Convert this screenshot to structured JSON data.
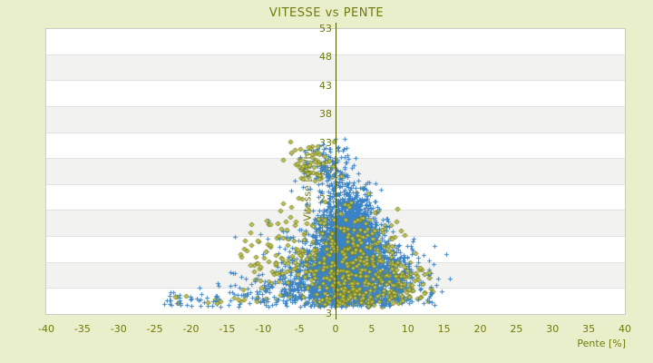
{
  "page": {
    "background": "#e9efca"
  },
  "chart_data": {
    "type": "scatter",
    "title": "VITESSE vs PENTE",
    "xlabel": "Pente [%]",
    "ylabel": "Vitesse [km/h]",
    "xlim": [
      -40,
      40
    ],
    "ylim": [
      3,
      53
    ],
    "xticks": [
      -40,
      -35,
      -30,
      -25,
      -20,
      -15,
      -10,
      -5,
      0,
      5,
      10,
      15,
      20,
      25,
      30,
      35,
      40
    ],
    "yticks": [
      3,
      8,
      13,
      18,
      23,
      28,
      33,
      38,
      43,
      48,
      53
    ],
    "grid": {
      "band_count": 11,
      "band_colors": [
        "#ffffff",
        "#f2f3f1"
      ],
      "separator_color": "#e2e2e2",
      "border_color": "#cccccc",
      "legend": "off"
    },
    "colors": {
      "title": "#6e7b0e",
      "tick_labels": "#6e7b0e",
      "axis_titles": "#6e7b0e",
      "zero_axis": "#4c5704"
    },
    "seed": 987654321,
    "series": [
      {
        "name": "serie-pente-vitesse-2",
        "marker": "diamond",
        "fill": "#c4ca4e",
        "stroke": "#6b701a",
        "size": 5,
        "overlay_fraction": 0.38,
        "clusters": [
          {
            "n": 480,
            "mx": 2.3,
            "sx": 2.6,
            "my": 13,
            "sy": 4.6,
            "clip": [
              -5,
              9,
              4.6,
              27.5
            ]
          },
          {
            "n": 320,
            "mx": 1.0,
            "sx": 5.5,
            "my": 9.5,
            "sy": 3.4,
            "clip": [
              -14,
              13,
              4.3,
              25
            ]
          },
          {
            "n": 230,
            "mx": 5.0,
            "sx": 4.4,
            "my": 7.4,
            "sy": 2.2,
            "clip": [
              -6,
              14.5,
              4.2,
              13
            ]
          },
          {
            "n": 62,
            "mx": -3.6,
            "sx": 1.8,
            "my": 29.4,
            "sy": 2.0,
            "clip": [
              -7.6,
              0.8,
              25,
              33.4
            ]
          },
          {
            "n": 70,
            "mx": -7.5,
            "sx": 3.4,
            "my": 14,
            "sy": 4.5,
            "clip": [
              -16,
              -1.5,
              5,
              26
            ]
          },
          {
            "n": 12,
            "mx": -17,
            "sx": 4.0,
            "my": 5.5,
            "sy": 0.9,
            "clip": [
              -25,
              -10,
              4.3,
              7
            ]
          }
        ]
      },
      {
        "name": "serie-pente-vitesse-1",
        "marker": "plus",
        "color": "#3a83c6",
        "size": 5,
        "clusters": [
          {
            "n": 1800,
            "mx": 1.7,
            "sx": 1.9,
            "my": 16,
            "sy": 4.3,
            "clip": [
              -5,
              8,
              5,
              28.5
            ]
          },
          {
            "n": 1000,
            "mx": 1.9,
            "sx": 3.0,
            "my": 10.5,
            "sy": 3.2,
            "clip": [
              -9,
              11,
              4.4,
              24
            ]
          },
          {
            "n": 480,
            "mx": 0.0,
            "sx": 5.4,
            "my": 9,
            "sy": 3.8,
            "clip": [
              -15.5,
              13,
              4.2,
              26
            ]
          },
          {
            "n": 280,
            "mx": -2.0,
            "sx": 8.2,
            "my": 6.3,
            "sy": 1.7,
            "clip": [
              -24.5,
              14,
              4.2,
              11
            ]
          },
          {
            "n": 130,
            "mx": -1.0,
            "sx": 2.2,
            "my": 28.3,
            "sy": 2.4,
            "clip": [
              -7.5,
              3.5,
              24,
              33.8
            ]
          },
          {
            "n": 26,
            "mx": -19,
            "sx": 3.6,
            "my": 5.3,
            "sy": 0.8,
            "clip": [
              -26.5,
              -12,
              4.2,
              7
            ]
          },
          {
            "n": 95,
            "mx": 9.5,
            "sx": 2.8,
            "my": 11,
            "sy": 2.8,
            "clip": [
              4,
              16.3,
              4.5,
              17
            ]
          }
        ]
      }
    ]
  }
}
